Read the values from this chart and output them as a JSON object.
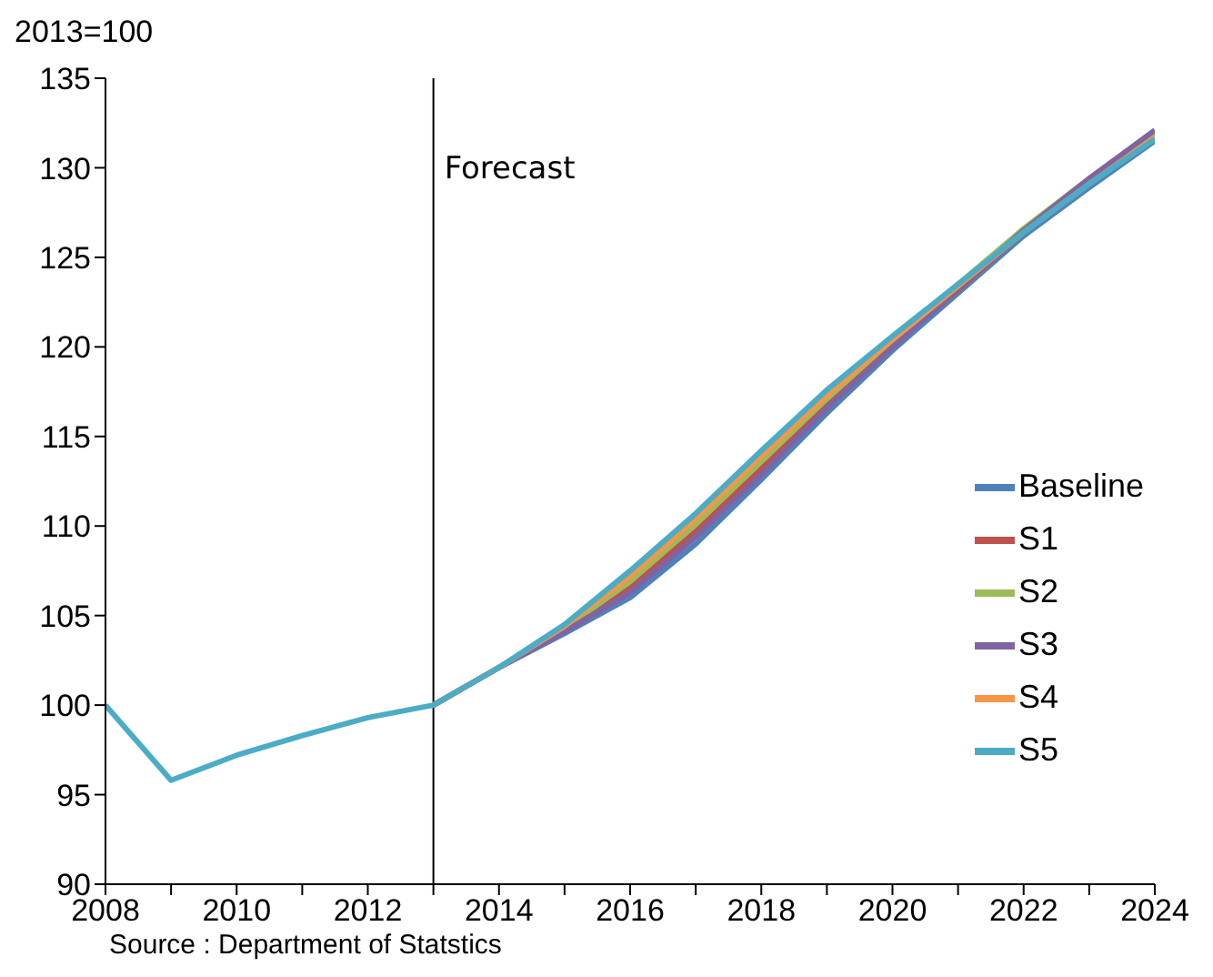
{
  "chart_data": {
    "type": "line",
    "ylabel": "2013=100",
    "x": [
      2008,
      2009,
      2010,
      2011,
      2012,
      2013,
      2014,
      2015,
      2016,
      2017,
      2018,
      2019,
      2020,
      2021,
      2022,
      2023,
      2024
    ],
    "series": [
      {
        "name": "Baseline",
        "color": "#4f81bd",
        "values": [
          null,
          null,
          null,
          null,
          null,
          100,
          102.1,
          104.0,
          106.0,
          109.0,
          112.6,
          116.3,
          119.8,
          123.0,
          126.2,
          128.9,
          131.5
        ]
      },
      {
        "name": "S1",
        "color": "#c0504d",
        "values": [
          null,
          null,
          null,
          null,
          null,
          100,
          102.1,
          104.2,
          106.6,
          109.7,
          113.2,
          116.8,
          120.1,
          123.2,
          126.4,
          129.2,
          131.8
        ]
      },
      {
        "name": "S2",
        "color": "#9bbb59",
        "values": [
          null,
          null,
          null,
          null,
          null,
          100,
          102.1,
          104.3,
          106.9,
          110.1,
          113.6,
          117.1,
          120.4,
          123.5,
          126.6,
          129.4,
          131.9
        ]
      },
      {
        "name": "S3",
        "color": "#8064a2",
        "values": [
          null,
          null,
          null,
          null,
          null,
          100,
          102.1,
          104.1,
          106.3,
          109.4,
          112.9,
          116.6,
          120.0,
          123.3,
          126.5,
          129.4,
          132.1
        ]
      },
      {
        "name": "S4",
        "color": "#f79646",
        "values": [
          null,
          null,
          null,
          null,
          null,
          100,
          102.1,
          104.4,
          107.2,
          110.4,
          113.9,
          117.3,
          120.4,
          123.4,
          126.4,
          129.1,
          131.7
        ]
      },
      {
        "name": "S5",
        "color": "#4bacc6",
        "values": [
          100,
          95.8,
          97.2,
          98.3,
          99.3,
          100,
          102.1,
          104.5,
          107.5,
          110.7,
          114.2,
          117.6,
          120.6,
          123.5,
          126.4,
          129.1,
          131.6
        ]
      }
    ],
    "xlim": [
      2008,
      2024
    ],
    "xticks": [
      2008,
      {
        "value": 2009,
        "label": null
      },
      2010,
      {
        "value": 2011,
        "label": null
      },
      2012,
      {
        "value": 2013,
        "label": null
      },
      2014,
      {
        "value": 2015,
        "label": null
      },
      2016,
      {
        "value": 2017,
        "label": null
      },
      2018,
      {
        "value": 2019,
        "label": null
      },
      2020,
      {
        "value": 2021,
        "label": null
      },
      2022,
      {
        "value": 2023,
        "label": null
      },
      2024
    ],
    "ylim": [
      90,
      135
    ],
    "yticks": [
      90,
      95,
      100,
      105,
      110,
      115,
      120,
      125,
      130,
      135
    ],
    "ref_lines": [
      {
        "axis": "x",
        "value": 2013,
        "label": "Forecast",
        "color": "#000000"
      }
    ],
    "grid": false,
    "legend": "right",
    "marker": "none",
    "line_style": "solid",
    "annotations": [
      "Source : Department of Statstics"
    ]
  }
}
